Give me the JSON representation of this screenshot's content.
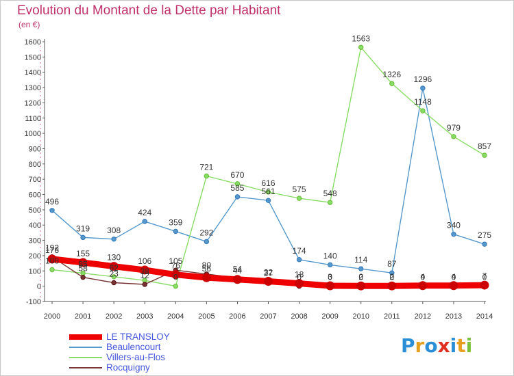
{
  "header": {
    "title": "Evolution du Montant de la Dette par Habitant",
    "subtitle": "(en €)"
  },
  "colors": {
    "title": "#c0306b",
    "axis_text": "#333333",
    "legend_text": "#4455dd",
    "grid": "#dddddd"
  },
  "logo": {
    "text": "Proxiti"
  },
  "chart_data": {
    "type": "line",
    "title": "Evolution du Montant de la Dette par Habitant",
    "ylabel": "(en €)",
    "xlabel": "",
    "x": [
      "2000",
      "2001",
      "2002",
      "2003",
      "2004",
      "2005",
      "2006",
      "2007",
      "2008",
      "2009",
      "2010",
      "2011",
      "2012",
      "2013",
      "2014"
    ],
    "ylim": [
      -100,
      1600
    ],
    "yticks": [
      -100,
      0,
      100,
      200,
      300,
      400,
      500,
      600,
      700,
      800,
      900,
      1000,
      1100,
      1200,
      1300,
      1400,
      1500,
      1600
    ],
    "grid": false,
    "legend_position": "bottom-left",
    "series": [
      {
        "name": "LE TRANSLOY",
        "color": "#ee0000",
        "marker_color": "#cc0000",
        "emphasis": true,
        "values": [
          178,
          155,
          130,
          106,
          76,
          56,
          44,
          32,
          18,
          3,
          2,
          2,
          4,
          4,
          7
        ]
      },
      {
        "name": "Beaulencourt",
        "color": "#5599cc",
        "marker_color": "#3377bb",
        "values": [
          496,
          319,
          308,
          424,
          359,
          292,
          585,
          561,
          174,
          140,
          114,
          87,
          1296,
          340,
          275
        ]
      },
      {
        "name": "Villers-au-Flos",
        "color": "#88dd66",
        "marker_color": "#66bb33",
        "values": [
          108,
          85,
          62,
          38,
          0,
          721,
          670,
          616,
          575,
          548,
          1563,
          1326,
          1148,
          979,
          857
        ]
      },
      {
        "name": "Rocquigny",
        "color": "#773333",
        "marker_color": "#551111",
        "values": [
          192,
          58,
          23,
          12,
          105,
          80,
          54,
          27,
          0,
          0,
          0,
          0,
          0,
          0,
          0
        ]
      }
    ]
  }
}
